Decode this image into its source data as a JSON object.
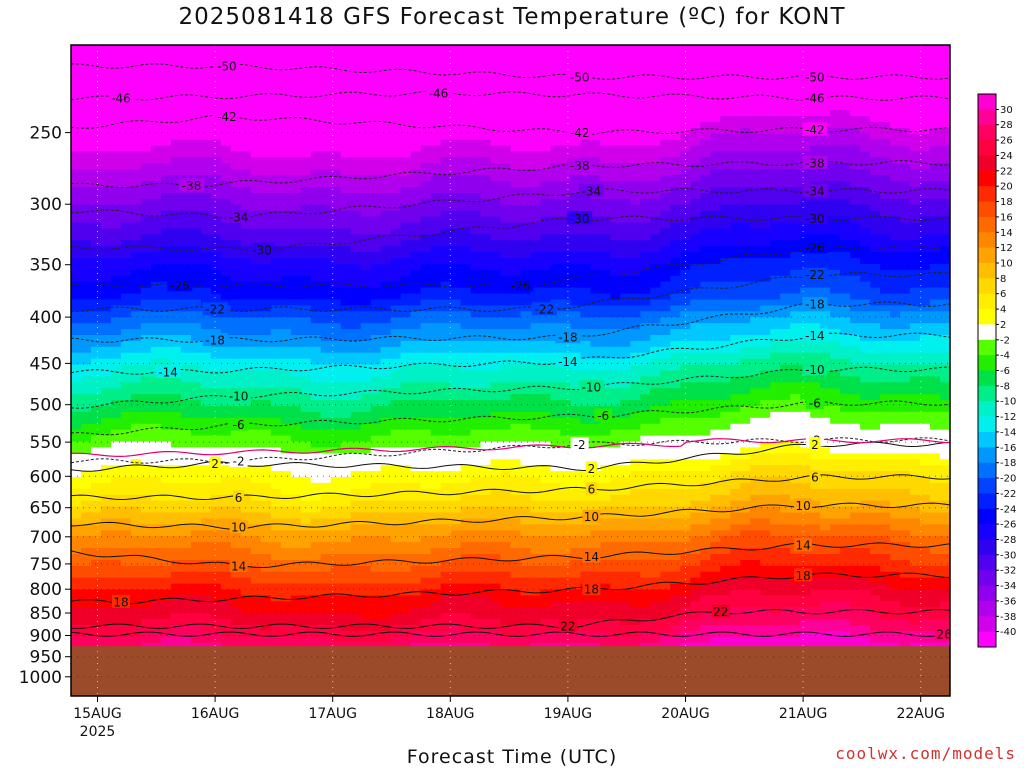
{
  "title": "2025081418 GFS Forecast Temperature (ºC) for KONT",
  "xlabel": "Forecast Time (UTC)",
  "credit": "coolwx.com/models",
  "year_label": "2025",
  "chart_data": {
    "type": "heatmap",
    "title": "2025081418 GFS Forecast Temperature (ºC) for KONT",
    "xlabel": "Forecast Time (UTC)",
    "ylabel": "",
    "x_ticks": [
      "15AUG",
      "16AUG",
      "17AUG",
      "18AUG",
      "19AUG",
      "20AUG",
      "21AUG",
      "22AUG"
    ],
    "x_range": [
      "2025-08-14T18Z",
      "2025-08-22T06Z"
    ],
    "y_ticks": [
      250,
      300,
      350,
      400,
      450,
      500,
      550,
      600,
      650,
      700,
      750,
      800,
      850,
      900,
      950,
      1000
    ],
    "y_range_hPa": [
      200,
      1050
    ],
    "y_scale": "log-pressure",
    "below_ground_from_hPa": 925,
    "colorbar": {
      "levels": [
        30,
        28,
        26,
        24,
        22,
        20,
        18,
        16,
        14,
        12,
        10,
        8,
        6,
        4,
        2,
        -2,
        -4,
        -6,
        -8,
        -10,
        -12,
        -14,
        -16,
        -18,
        -20,
        -22,
        -24,
        -26,
        -28,
        -30,
        -32,
        -34,
        -36,
        -38,
        -40
      ],
      "colors": [
        "#ff00d2",
        "#ff0098",
        "#ff0060",
        "#ff0040",
        "#f00028",
        "#ff0000",
        "#ff2a00",
        "#ff4d00",
        "#ff6a00",
        "#ff8700",
        "#ffa300",
        "#ffbe00",
        "#ffd800",
        "#ffee00",
        "#ffff00",
        "#ffffff",
        "#56ff00",
        "#22ee00",
        "#00e048",
        "#00ee8a",
        "#00f0c8",
        "#00f0f0",
        "#00c8ff",
        "#0098ff",
        "#0070ff",
        "#0044ff",
        "#0020ff",
        "#0000ff",
        "#1800ff",
        "#3000f0",
        "#5000ee",
        "#7000ee",
        "#9000ee",
        "#b000ee",
        "#d000ea",
        "#ff00ff"
      ]
    },
    "temperature_profile": [
      {
        "p": 200,
        "t": -55
      },
      {
        "p": 220,
        "t": -48
      },
      {
        "p": 250,
        "t": -42
      },
      {
        "p": 280,
        "t": -37
      },
      {
        "p": 300,
        "t": -34
      },
      {
        "p": 330,
        "t": -30
      },
      {
        "p": 350,
        "t": -27
      },
      {
        "p": 380,
        "t": -24
      },
      {
        "p": 400,
        "t": -20
      },
      {
        "p": 430,
        "t": -16
      },
      {
        "p": 450,
        "t": -13
      },
      {
        "p": 480,
        "t": -10
      },
      {
        "p": 500,
        "t": -8
      },
      {
        "p": 530,
        "t": -5
      },
      {
        "p": 560,
        "t": -2
      },
      {
        "p": 580,
        "t": 1
      },
      {
        "p": 600,
        "t": 3
      },
      {
        "p": 630,
        "t": 5
      },
      {
        "p": 650,
        "t": 7
      },
      {
        "p": 680,
        "t": 10
      },
      {
        "p": 700,
        "t": 12
      },
      {
        "p": 740,
        "t": 15
      },
      {
        "p": 780,
        "t": 18
      },
      {
        "p": 820,
        "t": 21
      },
      {
        "p": 860,
        "t": 23
      },
      {
        "p": 900,
        "t": 26
      },
      {
        "p": 930,
        "t": 28
      }
    ],
    "contour_labels": [
      {
        "t": -50,
        "day": 1.1,
        "p": 211
      },
      {
        "t": -50,
        "day": 4.1,
        "p": 217
      },
      {
        "t": -50,
        "day": 6.1,
        "p": 217
      },
      {
        "t": -46,
        "day": 0.2,
        "p": 229
      },
      {
        "t": -46,
        "day": 2.9,
        "p": 226
      },
      {
        "t": -46,
        "day": 6.1,
        "p": 229
      },
      {
        "t": -42,
        "day": -0.9,
        "p": 250
      },
      {
        "t": -42,
        "day": 1.1,
        "p": 240
      },
      {
        "t": -42,
        "day": 4.1,
        "p": 250
      },
      {
        "t": -42,
        "day": 6.1,
        "p": 248
      },
      {
        "t": -38,
        "day": 0.8,
        "p": 286
      },
      {
        "t": -38,
        "day": 4.1,
        "p": 272
      },
      {
        "t": -38,
        "day": 6.1,
        "p": 270
      },
      {
        "t": -34,
        "day": -0.8,
        "p": 303
      },
      {
        "t": -34,
        "day": 1.2,
        "p": 310
      },
      {
        "t": -34,
        "day": 4.2,
        "p": 290
      },
      {
        "t": -34,
        "day": 6.1,
        "p": 290
      },
      {
        "t": -30,
        "day": -0.8,
        "p": 334
      },
      {
        "t": -30,
        "day": 1.4,
        "p": 337
      },
      {
        "t": -30,
        "day": 4.1,
        "p": 311
      },
      {
        "t": -30,
        "day": 6.1,
        "p": 311
      },
      {
        "t": -26,
        "day": 0.7,
        "p": 369
      },
      {
        "t": -26,
        "day": 3.6,
        "p": 369
      },
      {
        "t": -26,
        "day": 6.1,
        "p": 335
      },
      {
        "t": -22,
        "day": 1.0,
        "p": 392
      },
      {
        "t": -22,
        "day": 3.8,
        "p": 392
      },
      {
        "t": -22,
        "day": 6.1,
        "p": 359
      },
      {
        "t": -18,
        "day": 1.0,
        "p": 424
      },
      {
        "t": -18,
        "day": 4.0,
        "p": 421
      },
      {
        "t": -18,
        "day": 6.1,
        "p": 387
      },
      {
        "t": -14,
        "day": 0.6,
        "p": 460
      },
      {
        "t": -14,
        "day": 4.0,
        "p": 448
      },
      {
        "t": -14,
        "day": 6.1,
        "p": 419
      },
      {
        "t": -10,
        "day": -0.6,
        "p": 506
      },
      {
        "t": -10,
        "day": 1.2,
        "p": 489
      },
      {
        "t": -10,
        "day": 4.2,
        "p": 478
      },
      {
        "t": -10,
        "day": 6.1,
        "p": 457
      },
      {
        "t": -6,
        "day": -1.0,
        "p": 548
      },
      {
        "t": -6,
        "day": 1.2,
        "p": 526
      },
      {
        "t": -6,
        "day": 4.3,
        "p": 514
      },
      {
        "t": -6,
        "day": 6.1,
        "p": 498
      },
      {
        "t": -2,
        "day": 1.2,
        "p": 577
      },
      {
        "t": -2,
        "day": 4.1,
        "p": 553
      },
      {
        "t": -2,
        "day": 6.1,
        "p": 547
      },
      {
        "t": 2,
        "day": -1.0,
        "p": 596
      },
      {
        "t": 2,
        "day": 1.0,
        "p": 581
      },
      {
        "t": 2,
        "day": 4.2,
        "p": 588
      },
      {
        "t": 2,
        "day": 6.1,
        "p": 553
      },
      {
        "t": 6,
        "day": 1.2,
        "p": 633
      },
      {
        "t": 6,
        "day": 4.2,
        "p": 620
      },
      {
        "t": 6,
        "day": 6.1,
        "p": 601
      },
      {
        "t": 10,
        "day": -1.0,
        "p": 674
      },
      {
        "t": 10,
        "day": 1.2,
        "p": 683
      },
      {
        "t": 10,
        "day": 4.2,
        "p": 665
      },
      {
        "t": 10,
        "day": 6.0,
        "p": 646
      },
      {
        "t": 14,
        "day": -0.8,
        "p": 717
      },
      {
        "t": 14,
        "day": 1.2,
        "p": 754
      },
      {
        "t": 14,
        "day": 4.2,
        "p": 736
      },
      {
        "t": 14,
        "day": 6.0,
        "p": 715
      },
      {
        "t": 18,
        "day": 0.2,
        "p": 826
      },
      {
        "t": 18,
        "day": 4.2,
        "p": 800
      },
      {
        "t": 18,
        "day": 6.0,
        "p": 772
      },
      {
        "t": 22,
        "day": 4.0,
        "p": 879
      },
      {
        "t": 22,
        "day": 5.3,
        "p": 847
      },
      {
        "t": 26,
        "day": 7.2,
        "p": 897
      }
    ]
  }
}
